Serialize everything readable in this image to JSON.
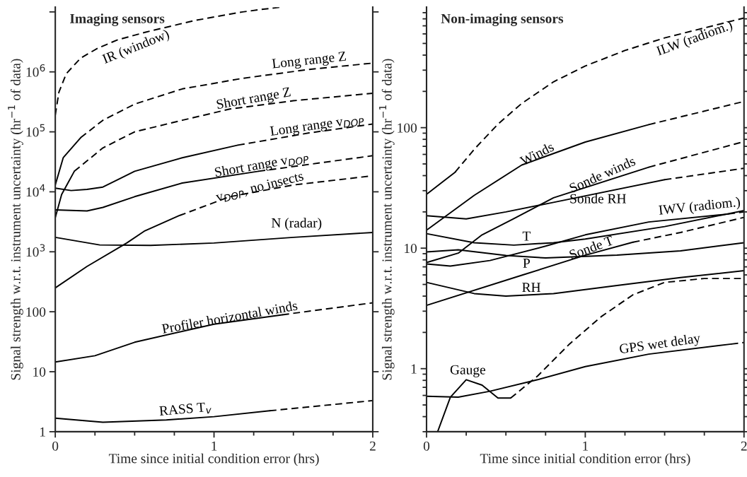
{
  "chart_data": [
    {
      "type": "line",
      "title": "Imaging sensors",
      "xlabel": "Time since initial condition error (hrs)",
      "ylabel": "Signal strength w.r.t. instrument uncertainty (hr$^{−1}$ of data)",
      "log": "y",
      "xlim": [
        0,
        2
      ],
      "xticks": [
        0,
        1,
        2
      ],
      "ylim": [
        1,
        12000000
      ],
      "yticks": [
        1,
        10,
        100,
        {
          "value": 1000,
          "label": "10$^{3}$"
        },
        {
          "value": 10000,
          "label": "10$^{4}$"
        },
        {
          "value": 100000,
          "label": "10$^{5}$"
        },
        {
          "value": 1000000,
          "label": "10$^{6}$"
        },
        {
          "value": 10000000,
          "label": null
        }
      ],
      "grid": false,
      "legend": false,
      "series": [
        {
          "name": "IR (window)",
          "color": "#000000",
          "line_style": "dashed",
          "x": [
            0,
            0.023,
            0.069,
            0.16,
            0.27,
            0.39,
            0.57,
            0.88,
            1.18,
            1.3,
            1.42
          ],
          "values": [
            190000,
            460000,
            930000,
            1700000,
            2500000,
            3400000,
            4600000,
            7200000,
            10000000,
            11000000,
            12000000
          ]
        },
        {
          "color": "#000000",
          "line_style": "solid",
          "x": [
            0,
            0.05,
            0.16
          ],
          "values": [
            13000,
            37000,
            80000
          ]
        },
        {
          "name": "Long range Z",
          "color": "#000000",
          "line_style": "dashed",
          "x": [
            0.16,
            0.3,
            0.5,
            0.8,
            1.18,
            1.6,
            2
          ],
          "values": [
            80000,
            156000,
            290000,
            520000,
            780000,
            1100000,
            1400000
          ]
        },
        {
          "color": "#000000",
          "line_style": "solid",
          "x": [
            0,
            0.04,
            0.12
          ],
          "values": [
            3700,
            9000,
            22000
          ]
        },
        {
          "name": "Short range Z",
          "color": "#000000",
          "line_style": "dashed",
          "x": [
            0.12,
            0.3,
            0.5,
            0.8,
            1.1,
            1.5,
            2
          ],
          "values": [
            22000,
            54000,
            100000,
            156000,
            240000,
            330000,
            440000
          ]
        },
        {
          "color": "#000000",
          "line_style": "solid",
          "x": [
            0,
            0.1,
            0.2,
            0.3,
            0.5,
            0.8,
            1.15
          ],
          "values": [
            11500,
            10500,
            11000,
            12000,
            22000,
            37000,
            60000
          ]
        },
        {
          "name": "Long range v$_{DOP}$",
          "color": "#000000",
          "line_style": "dashed",
          "x": [
            1.15,
            1.6,
            2
          ],
          "values": [
            60000,
            96000,
            135000
          ]
        },
        {
          "name": "Short range v$_{DOP}$",
          "color": "#000000",
          "line_style": "solid",
          "x": [
            0,
            0.2,
            0.3,
            0.5,
            0.8,
            1.28
          ],
          "values": [
            5000,
            4800,
            5500,
            8300,
            14000,
            22000
          ]
        },
        {
          "color": "#000000",
          "line_style": "dashed",
          "x": [
            1.28,
            2
          ],
          "values": [
            22000,
            40000
          ]
        },
        {
          "color": "#000000",
          "line_style": "solid",
          "x": [
            0,
            0.2,
            0.45,
            0.56,
            0.78
          ],
          "values": [
            250,
            570,
            1400,
            2200,
            4000
          ]
        },
        {
          "name": "v$_{DOP}$, no insects",
          "color": "#000000",
          "line_style": "dashed",
          "x": [
            0.78,
            1.1,
            1.5,
            2
          ],
          "values": [
            4000,
            8300,
            13000,
            18500
          ]
        },
        {
          "name": "N (radar)",
          "color": "#000000",
          "line_style": "solid",
          "x": [
            0,
            0.28,
            0.6,
            1.0,
            1.5,
            2
          ],
          "values": [
            1740,
            1300,
            1280,
            1400,
            1740,
            2100
          ]
        },
        {
          "name": "Profiler horizontal winds",
          "color": "#000000",
          "line_style": "solid",
          "x": [
            0,
            0.25,
            0.5,
            1.0,
            1.43
          ],
          "values": [
            14.5,
            18.5,
            31,
            62,
            89
          ]
        },
        {
          "color": "#000000",
          "line_style": "dashed",
          "x": [
            1.43,
            2
          ],
          "values": [
            89,
            141
          ]
        },
        {
          "name": "RASS T$_{v}$",
          "color": "#000000",
          "line_style": "solid",
          "x": [
            0,
            0.3,
            0.7,
            1.0,
            1.35
          ],
          "values": [
            1.68,
            1.44,
            1.57,
            1.78,
            2.23
          ]
        },
        {
          "color": "#000000",
          "line_style": "dashed",
          "x": [
            1.35,
            2
          ],
          "values": [
            2.23,
            3.3
          ]
        }
      ]
    },
    {
      "type": "line",
      "title": "Non-imaging sensors",
      "xlabel": "Time since initial condition error (hrs)",
      "ylabel": "Signal strength w.r.t. instrument uncertainty (hr$^{−1}$ of data)",
      "log": "y",
      "xlim": [
        0,
        2
      ],
      "xticks": [
        0,
        1,
        2
      ],
      "ylim": [
        0.3,
        1000
      ],
      "yticks": [
        1,
        10,
        100
      ],
      "grid": false,
      "legend": false,
      "series": [
        {
          "color": "#000000",
          "line_style": "solid",
          "x": [
            0,
            0.18
          ],
          "values": [
            28,
            42.7
          ]
        },
        {
          "name": "ILW (radiom.)",
          "color": "#000000",
          "line_style": "dashed",
          "x": [
            0.18,
            0.3,
            0.45,
            0.6,
            0.8,
            1.0,
            1.25,
            1.5,
            2
          ],
          "values": [
            42.7,
            66,
            107,
            159,
            240,
            325,
            437,
            556,
            813
          ]
        },
        {
          "name": "Winds",
          "color": "#000000",
          "line_style": "solid",
          "x": [
            0,
            0.3,
            0.6,
            1.0,
            1.4
          ],
          "values": [
            14.1,
            27.4,
            49,
            76,
            106
          ]
        },
        {
          "color": "#000000",
          "line_style": "dashed",
          "x": [
            1.4,
            2
          ],
          "values": [
            106,
            165
          ]
        },
        {
          "name": "Sonde winds",
          "color": "#000000",
          "line_style": "solid",
          "x": [
            0,
            0.2,
            0.35,
            0.55,
            0.8,
            1.4
          ],
          "values": [
            7.6,
            9.1,
            12.9,
            17.6,
            26.2,
            47
          ]
        },
        {
          "color": "#000000",
          "line_style": "dashed",
          "x": [
            1.4,
            2
          ],
          "values": [
            47,
            76.6
          ]
        },
        {
          "name": "Sonde RH",
          "color": "#000000",
          "line_style": "solid",
          "x": [
            0,
            0.25,
            0.5,
            0.8,
            1.5
          ],
          "values": [
            18.6,
            17.5,
            20,
            24,
            37
          ]
        },
        {
          "color": "#000000",
          "line_style": "dashed",
          "x": [
            1.5,
            2
          ],
          "values": [
            37,
            46
          ]
        },
        {
          "name": "IWV (radiom.)",
          "color": "#000000",
          "line_style": "solid",
          "x": [
            0,
            0.15,
            0.4,
            0.75,
            1.0,
            1.4,
            1.9
          ],
          "values": [
            7.4,
            7.1,
            7.9,
            10.4,
            12.9,
            16.5,
            19.2
          ]
        },
        {
          "color": "#000000",
          "line_style": "dashed",
          "x": [
            1.9,
            2
          ],
          "values": [
            19.2,
            20
          ]
        },
        {
          "name": "Sonde T",
          "color": "#000000",
          "line_style": "solid",
          "x": [
            0,
            0.6,
            1.0,
            1.3
          ],
          "values": [
            3.35,
            5.96,
            8.75,
            11.2
          ]
        },
        {
          "color": "#000000",
          "line_style": "dashed",
          "x": [
            1.3,
            1.6,
            2
          ],
          "values": [
            11.2,
            13.5,
            18
          ]
        },
        {
          "name": "T",
          "color": "#000000",
          "line_style": "solid",
          "x": [
            0,
            0.3,
            0.55,
            0.8,
            1.0,
            1.5,
            2
          ],
          "values": [
            13.2,
            11.1,
            10.6,
            11.1,
            11.9,
            15.1,
            20.5
          ]
        },
        {
          "name": "P",
          "color": "#000000",
          "line_style": "solid",
          "x": [
            0,
            0.2,
            0.5,
            0.75,
            1.2,
            1.6,
            2
          ],
          "values": [
            9.3,
            9.7,
            8.7,
            8.3,
            8.75,
            9.5,
            11.1
          ]
        },
        {
          "name": "RH",
          "color": "#000000",
          "line_style": "solid",
          "x": [
            0,
            0.3,
            0.5,
            0.8,
            1.2,
            1.6,
            2
          ],
          "values": [
            5.2,
            4.2,
            4.0,
            4.2,
            4.9,
            5.7,
            6.5
          ]
        },
        {
          "name": "Gauge",
          "color": "#000000",
          "line_style": "solid",
          "x": [
            0.07,
            0.15,
            0.25,
            0.35,
            0.45,
            0.53
          ],
          "values": [
            0.3,
            0.58,
            0.81,
            0.73,
            0.57,
            0.57
          ]
        },
        {
          "color": "#000000",
          "line_style": "dashed",
          "x": [
            0.53,
            0.7,
            0.9,
            1.1,
            1.3,
            1.5,
            1.75,
            2
          ],
          "values": [
            0.57,
            0.87,
            1.6,
            2.7,
            4.1,
            5.2,
            5.6,
            5.6
          ]
        },
        {
          "name": "GPS wet delay",
          "color": "#000000",
          "line_style": "solid",
          "x": [
            0,
            0.2,
            0.4,
            0.7,
            1.0,
            1.4,
            1.92
          ],
          "values": [
            0.59,
            0.58,
            0.65,
            0.81,
            1.04,
            1.32,
            1.6
          ]
        },
        {
          "color": "#000000",
          "line_style": "dashed",
          "x": [
            1.92,
            2
          ],
          "values": [
            1.6,
            1.65
          ]
        }
      ]
    }
  ]
}
